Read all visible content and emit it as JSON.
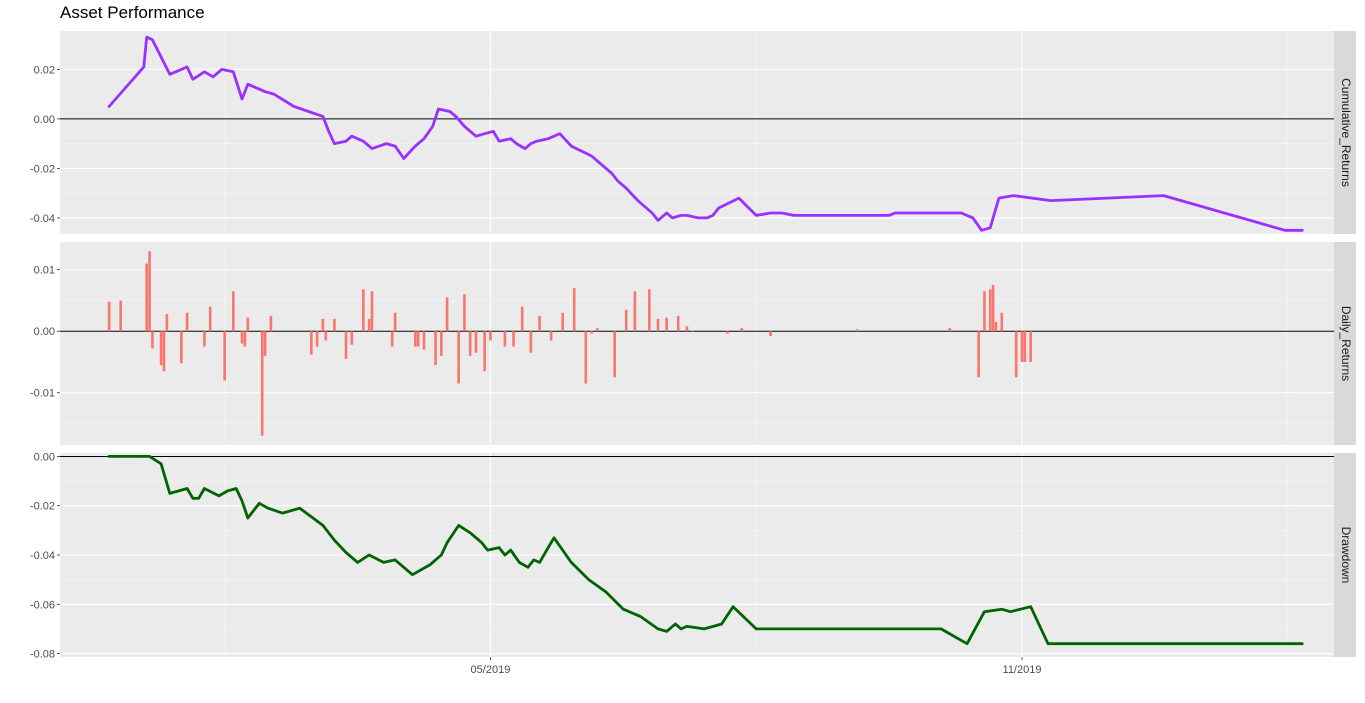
{
  "chart_data": {
    "type": "line",
    "title": "Asset Performance",
    "x_axis": {
      "type": "date",
      "range": [
        "2018-12-03",
        "2020-02-17"
      ],
      "ticks": [
        {
          "date": "2019-05-01",
          "label": "05/2019"
        },
        {
          "date": "2019-11-01",
          "label": "11/2019"
        }
      ]
    },
    "grid": true,
    "panels": [
      {
        "name": "Cumulative_Returns",
        "type": "line",
        "color": "#9b30ff",
        "ylim": [
          -0.0465,
          0.0355
        ],
        "yticks": [
          {
            "v": 0.02,
            "label": "0.02"
          },
          {
            "v": 0.0,
            "label": "0.00"
          },
          {
            "v": -0.02,
            "label": "-0.02"
          },
          {
            "v": -0.04,
            "label": "-0.04"
          }
        ],
        "zero_line": true,
        "x": [
          "2018-12-20",
          "2019-01-01",
          "2019-01-02",
          "2019-01-04",
          "2019-01-07",
          "2019-01-10",
          "2019-01-14",
          "2019-01-16",
          "2019-01-18",
          "2019-01-22",
          "2019-01-25",
          "2019-01-28",
          "2019-02-01",
          "2019-02-04",
          "2019-02-06",
          "2019-02-08",
          "2019-02-12",
          "2019-02-15",
          "2019-02-22",
          "2019-03-04",
          "2019-03-06",
          "2019-03-08",
          "2019-03-12",
          "2019-03-14",
          "2019-03-18",
          "2019-03-21",
          "2019-03-26",
          "2019-03-29",
          "2019-04-01",
          "2019-04-05",
          "2019-04-08",
          "2019-04-11",
          "2019-04-13",
          "2019-04-17",
          "2019-04-19",
          "2019-04-22",
          "2019-04-24",
          "2019-04-26",
          "2019-04-29",
          "2019-05-02",
          "2019-05-04",
          "2019-05-08",
          "2019-05-10",
          "2019-05-13",
          "2019-05-15",
          "2019-05-17",
          "2019-05-21",
          "2019-05-25",
          "2019-05-29",
          "2019-06-05",
          "2019-06-08",
          "2019-06-12",
          "2019-06-14",
          "2019-06-17",
          "2019-06-21",
          "2019-06-24",
          "2019-06-26",
          "2019-06-28",
          "2019-07-01",
          "2019-07-03",
          "2019-07-06",
          "2019-07-08",
          "2019-07-12",
          "2019-07-15",
          "2019-07-17",
          "2019-07-19",
          "2019-07-26",
          "2019-08-01",
          "2019-08-06",
          "2019-08-08",
          "2019-08-10",
          "2019-08-14",
          "2019-08-19",
          "2019-08-24",
          "2019-08-27",
          "2019-09-02",
          "2019-09-05",
          "2019-09-10",
          "2019-09-12",
          "2019-09-16",
          "2019-09-18",
          "2019-09-24",
          "2019-09-30",
          "2019-10-02",
          "2019-10-04",
          "2019-10-07",
          "2019-10-09",
          "2019-10-11",
          "2019-10-15",
          "2019-10-18",
          "2019-10-21",
          "2019-10-24",
          "2019-10-29",
          "2019-11-11",
          "2019-12-20",
          "2020-01-31",
          "2020-02-06"
        ],
        "values": [
          0.005,
          0.021,
          0.033,
          0.032,
          0.025,
          0.018,
          0.02,
          0.021,
          0.016,
          0.019,
          0.017,
          0.02,
          0.019,
          0.008,
          0.014,
          0.013,
          0.011,
          0.01,
          0.005,
          0.001,
          -0.005,
          -0.01,
          -0.009,
          -0.007,
          -0.009,
          -0.012,
          -0.01,
          -0.011,
          -0.016,
          -0.011,
          -0.008,
          -0.003,
          0.004,
          0.003,
          0.001,
          -0.003,
          -0.005,
          -0.007,
          -0.006,
          -0.005,
          -0.009,
          -0.008,
          -0.01,
          -0.012,
          -0.01,
          -0.009,
          -0.008,
          -0.006,
          -0.011,
          -0.015,
          -0.018,
          -0.022,
          -0.025,
          -0.028,
          -0.033,
          -0.036,
          -0.038,
          -0.041,
          -0.038,
          -0.04,
          -0.039,
          -0.039,
          -0.04,
          -0.04,
          -0.039,
          -0.036,
          -0.032,
          -0.039,
          -0.038,
          -0.038,
          -0.038,
          -0.039,
          -0.039,
          -0.039,
          -0.039,
          -0.039,
          -0.039,
          -0.039,
          -0.039,
          -0.039,
          -0.038,
          -0.038,
          -0.038,
          -0.038,
          -0.038,
          -0.038,
          -0.038,
          -0.038,
          -0.04,
          -0.045,
          -0.044,
          -0.032,
          -0.031,
          -0.033,
          -0.031,
          -0.045,
          -0.045
        ]
      },
      {
        "name": "Daily_Returns",
        "type": "bar",
        "color": "#f8766d",
        "ylim": [
          -0.0185,
          0.0145
        ],
        "yticks": [
          {
            "v": 0.01,
            "label": "0.01"
          },
          {
            "v": 0.0,
            "label": "0.00"
          },
          {
            "v": -0.01,
            "label": "-0.01"
          }
        ],
        "zero_line": true,
        "x": [
          "2018-12-20",
          "2018-12-24",
          "2019-01-02",
          "2019-01-03",
          "2019-01-04",
          "2019-01-07",
          "2019-01-08",
          "2019-01-09",
          "2019-01-14",
          "2019-01-16",
          "2019-01-22",
          "2019-01-24",
          "2019-01-29",
          "2019-02-01",
          "2019-02-04",
          "2019-02-05",
          "2019-02-06",
          "2019-02-11",
          "2019-02-12",
          "2019-02-14",
          "2019-02-28",
          "2019-03-02",
          "2019-03-04",
          "2019-03-05",
          "2019-03-08",
          "2019-03-12",
          "2019-03-14",
          "2019-03-18",
          "2019-03-20",
          "2019-03-21",
          "2019-03-28",
          "2019-03-29",
          "2019-04-05",
          "2019-04-06",
          "2019-04-08",
          "2019-04-12",
          "2019-04-14",
          "2019-04-16",
          "2019-04-20",
          "2019-04-22",
          "2019-04-24",
          "2019-04-26",
          "2019-04-29",
          "2019-05-01",
          "2019-05-06",
          "2019-05-09",
          "2019-05-12",
          "2019-05-15",
          "2019-05-18",
          "2019-05-22",
          "2019-05-26",
          "2019-05-30",
          "2019-06-03",
          "2019-06-05",
          "2019-06-07",
          "2019-06-13",
          "2019-06-17",
          "2019-06-20",
          "2019-06-25",
          "2019-06-28",
          "2019-07-01",
          "2019-07-05",
          "2019-07-08",
          "2019-07-10",
          "2019-07-22",
          "2019-07-27",
          "2019-08-06",
          "2019-09-05",
          "2019-10-07",
          "2019-10-17",
          "2019-10-19",
          "2019-10-21",
          "2019-10-22",
          "2019-10-23",
          "2019-10-25",
          "2019-10-30",
          "2019-11-01",
          "2019-11-02",
          "2019-11-04"
        ],
        "values": [
          0.0048,
          0.005,
          0.011,
          0.013,
          -0.0028,
          -0.0055,
          -0.0065,
          0.0028,
          -0.0052,
          0.003,
          -0.0025,
          0.004,
          -0.008,
          0.0065,
          -0.002,
          -0.0025,
          0.0022,
          -0.017,
          -0.004,
          0.0025,
          -0.0038,
          -0.0025,
          0.002,
          -0.0015,
          0.002,
          -0.0045,
          -0.0022,
          0.0068,
          0.002,
          0.0065,
          -0.0025,
          0.003,
          -0.0025,
          -0.0025,
          -0.003,
          -0.0055,
          -0.004,
          0.0055,
          -0.0085,
          0.006,
          -0.004,
          -0.0035,
          -0.0065,
          -0.0015,
          -0.0025,
          -0.0025,
          0.004,
          -0.0035,
          0.0025,
          -0.0015,
          0.003,
          0.007,
          -0.0085,
          -0.0004,
          0.0005,
          -0.0075,
          0.0035,
          0.0065,
          0.0068,
          0.002,
          0.0022,
          0.0025,
          0.0008,
          0.0,
          -0.0004,
          0.0005,
          -0.0008,
          0.0003,
          0.0005,
          -0.0075,
          0.0065,
          0.0068,
          0.0075,
          0.0015,
          0.003,
          -0.0075,
          -0.005,
          -0.005,
          -0.005
        ]
      },
      {
        "name": "Drawdown",
        "type": "line",
        "color": "#006400",
        "ylim": [
          -0.0814,
          0.0014
        ],
        "yticks": [
          {
            "v": 0.0,
            "label": "0.00"
          },
          {
            "v": -0.02,
            "label": "-0.02"
          },
          {
            "v": -0.04,
            "label": "-0.04"
          },
          {
            "v": -0.06,
            "label": "-0.06"
          },
          {
            "v": -0.08,
            "label": "-0.08"
          }
        ],
        "zero_line": true,
        "x": [
          "2018-12-20",
          "2019-01-03",
          "2019-01-07",
          "2019-01-10",
          "2019-01-16",
          "2019-01-18",
          "2019-01-20",
          "2019-01-22",
          "2019-01-27",
          "2019-01-30",
          "2019-02-02",
          "2019-02-04",
          "2019-02-06",
          "2019-02-10",
          "2019-02-13",
          "2019-02-18",
          "2019-02-24",
          "2019-03-04",
          "2019-03-08",
          "2019-03-12",
          "2019-03-16",
          "2019-03-20",
          "2019-03-25",
          "2019-03-29",
          "2019-04-04",
          "2019-04-10",
          "2019-04-14",
          "2019-04-16",
          "2019-04-20",
          "2019-04-24",
          "2019-04-28",
          "2019-04-30",
          "2019-05-04",
          "2019-05-06",
          "2019-05-08",
          "2019-05-11",
          "2019-05-14",
          "2019-05-16",
          "2019-05-18",
          "2019-05-21",
          "2019-05-23",
          "2019-05-29",
          "2019-06-04",
          "2019-06-10",
          "2019-06-16",
          "2019-06-22",
          "2019-06-28",
          "2019-07-01",
          "2019-07-04",
          "2019-07-06",
          "2019-07-08",
          "2019-07-14",
          "2019-07-20",
          "2019-07-24",
          "2019-08-01",
          "2019-08-20",
          "2019-09-20",
          "2019-09-27",
          "2019-10-04",
          "2019-10-10",
          "2019-10-13",
          "2019-10-19",
          "2019-10-25",
          "2019-10-28",
          "2019-11-04",
          "2019-11-10",
          "2020-01-01",
          "2020-02-06"
        ],
        "values": [
          0.0,
          0.0,
          -0.003,
          -0.015,
          -0.013,
          -0.017,
          -0.017,
          -0.013,
          -0.016,
          -0.014,
          -0.013,
          -0.018,
          -0.025,
          -0.019,
          -0.021,
          -0.023,
          -0.021,
          -0.028,
          -0.034,
          -0.039,
          -0.043,
          -0.04,
          -0.043,
          -0.042,
          -0.048,
          -0.044,
          -0.04,
          -0.035,
          -0.028,
          -0.031,
          -0.035,
          -0.038,
          -0.037,
          -0.04,
          -0.038,
          -0.043,
          -0.045,
          -0.042,
          -0.043,
          -0.037,
          -0.033,
          -0.043,
          -0.05,
          -0.055,
          -0.062,
          -0.065,
          -0.07,
          -0.071,
          -0.068,
          -0.07,
          -0.069,
          -0.07,
          -0.068,
          -0.061,
          -0.07,
          -0.07,
          -0.07,
          -0.07,
          -0.07,
          -0.074,
          -0.076,
          -0.063,
          -0.062,
          -0.063,
          -0.061,
          -0.076,
          -0.076,
          -0.076
        ]
      }
    ]
  }
}
